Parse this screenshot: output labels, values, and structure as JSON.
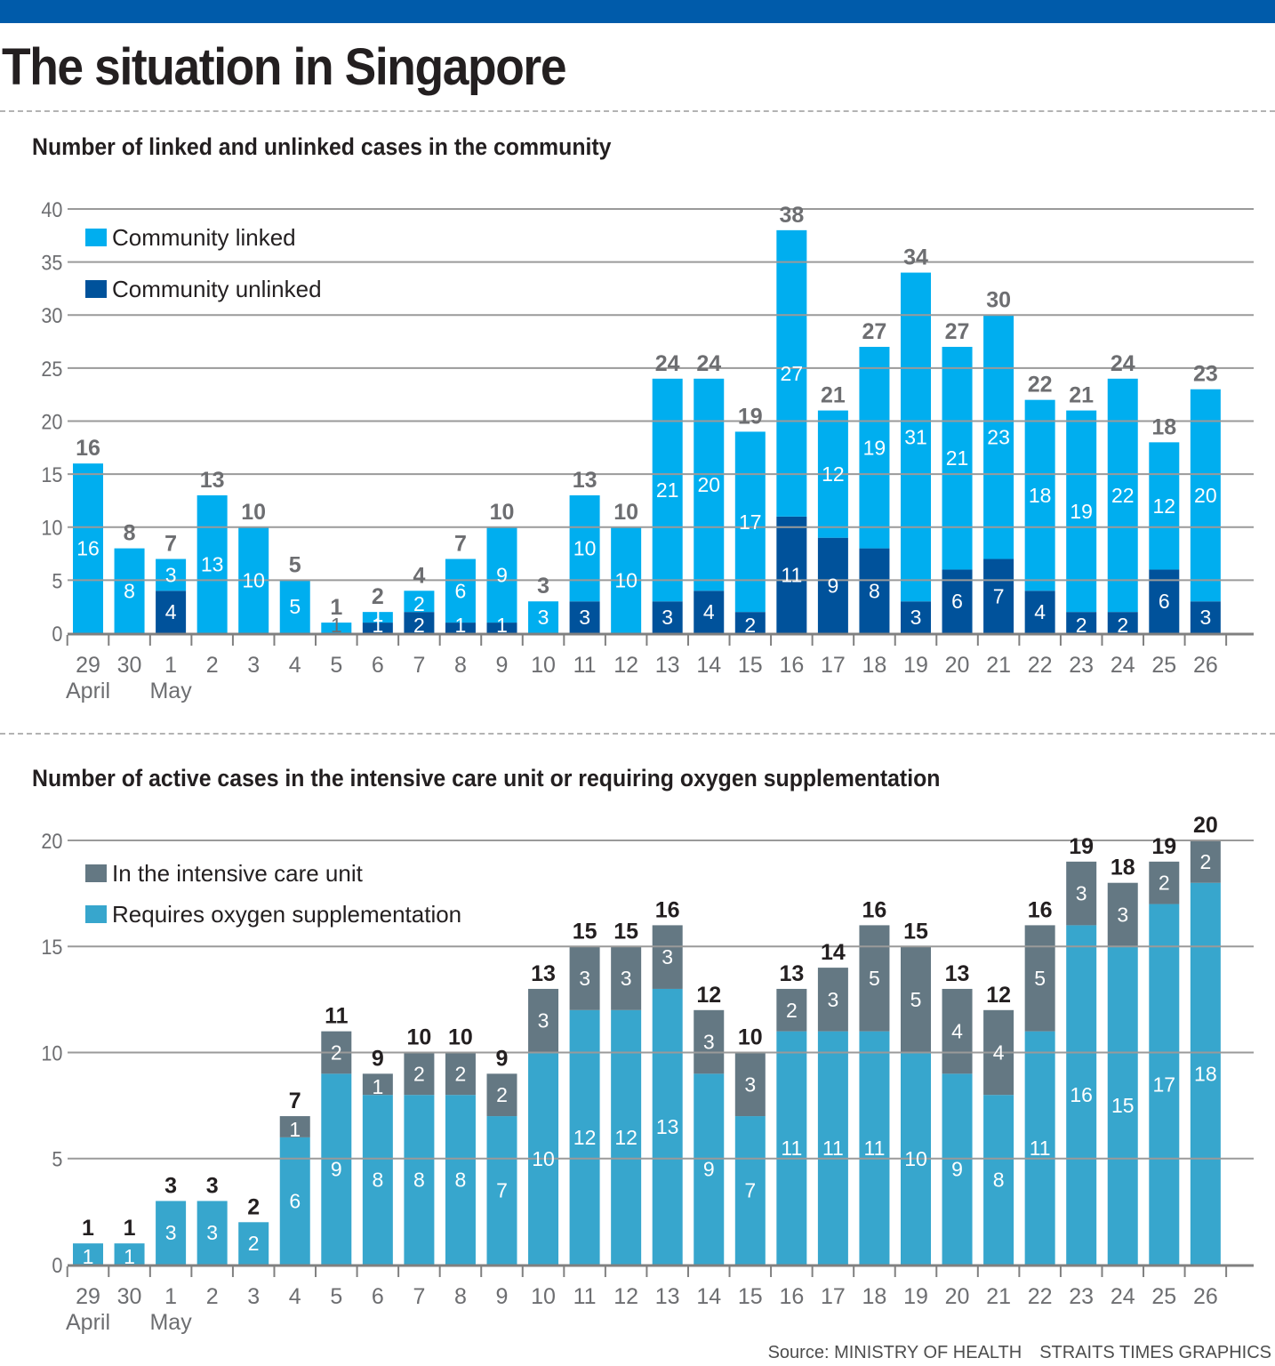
{
  "header": {
    "title": "The situation in Singapore"
  },
  "footer": {
    "source": "Source: MINISTRY OF HEALTH",
    "credit": "STRAITS TIMES GRAPHICS"
  },
  "colors": {
    "brand_bar": "#005baa",
    "linked": "#00aeef",
    "unlinked": "#00529b",
    "icu": "#647883",
    "oxygen": "#37a6cd",
    "grid": "#999999",
    "tick_text": "#6d6e71"
  },
  "chart_data": [
    {
      "type": "bar",
      "stacked": true,
      "title": "Number of linked and unlinked cases in the community",
      "xlabel": "",
      "ylabel": "",
      "ylim": [
        0,
        40
      ],
      "yticks": [
        0,
        5,
        10,
        15,
        20,
        25,
        30,
        35,
        40
      ],
      "grid": true,
      "legend_position": "top-left",
      "categories": [
        "29",
        "30",
        "1",
        "2",
        "3",
        "4",
        "5",
        "6",
        "7",
        "8",
        "9",
        "10",
        "11",
        "12",
        "13",
        "14",
        "15",
        "16",
        "17",
        "18",
        "19",
        "20",
        "21",
        "22",
        "23",
        "24",
        "25",
        "26"
      ],
      "month_labels": [
        {
          "index": 0,
          "label": "April"
        },
        {
          "index": 2,
          "label": "May"
        }
      ],
      "series": [
        {
          "name": "Community unlinked",
          "color": "#00529b",
          "values": [
            0,
            0,
            4,
            0,
            0,
            0,
            0,
            1,
            2,
            1,
            1,
            0,
            3,
            0,
            3,
            4,
            2,
            11,
            9,
            8,
            3,
            6,
            7,
            4,
            2,
            2,
            6,
            3
          ]
        },
        {
          "name": "Community linked",
          "color": "#00aeef",
          "values": [
            16,
            8,
            3,
            13,
            10,
            5,
            1,
            1,
            2,
            6,
            9,
            3,
            10,
            10,
            21,
            20,
            17,
            27,
            12,
            19,
            31,
            21,
            23,
            18,
            19,
            22,
            12,
            20
          ]
        }
      ],
      "totals": [
        16,
        8,
        7,
        13,
        10,
        5,
        1,
        2,
        4,
        7,
        10,
        3,
        13,
        10,
        24,
        24,
        19,
        38,
        21,
        27,
        34,
        27,
        30,
        22,
        21,
        24,
        18,
        23
      ],
      "legend": [
        "Community linked",
        "Community unlinked"
      ]
    },
    {
      "type": "bar",
      "stacked": true,
      "title": "Number of active cases in the intensive care unit or requiring oxygen supplementation",
      "xlabel": "",
      "ylabel": "",
      "ylim": [
        0,
        20
      ],
      "yticks": [
        0,
        5,
        10,
        15,
        20
      ],
      "grid": true,
      "legend_position": "top-left",
      "categories": [
        "29",
        "30",
        "1",
        "2",
        "3",
        "4",
        "5",
        "6",
        "7",
        "8",
        "9",
        "10",
        "11",
        "12",
        "13",
        "14",
        "15",
        "16",
        "17",
        "18",
        "19",
        "20",
        "21",
        "22",
        "23",
        "24",
        "25",
        "26"
      ],
      "month_labels": [
        {
          "index": 0,
          "label": "April"
        },
        {
          "index": 2,
          "label": "May"
        }
      ],
      "series": [
        {
          "name": "Requires oxygen supplementation",
          "color": "#37a6cd",
          "values": [
            1,
            1,
            3,
            3,
            2,
            6,
            9,
            8,
            8,
            8,
            7,
            10,
            12,
            12,
            13,
            9,
            7,
            11,
            11,
            11,
            10,
            9,
            8,
            11,
            16,
            15,
            17,
            18
          ]
        },
        {
          "name": "In the intensive care unit",
          "color": "#647883",
          "values": [
            0,
            0,
            0,
            0,
            0,
            1,
            2,
            1,
            2,
            2,
            2,
            3,
            3,
            3,
            3,
            3,
            3,
            2,
            3,
            5,
            5,
            4,
            4,
            5,
            3,
            3,
            2,
            2
          ]
        }
      ],
      "totals": [
        1,
        1,
        3,
        3,
        2,
        7,
        11,
        9,
        10,
        10,
        9,
        13,
        15,
        15,
        16,
        12,
        10,
        13,
        14,
        16,
        15,
        13,
        12,
        16,
        19,
        18,
        19,
        20
      ],
      "legend": [
        "In the intensive care unit",
        "Requires oxygen supplementation"
      ]
    }
  ]
}
